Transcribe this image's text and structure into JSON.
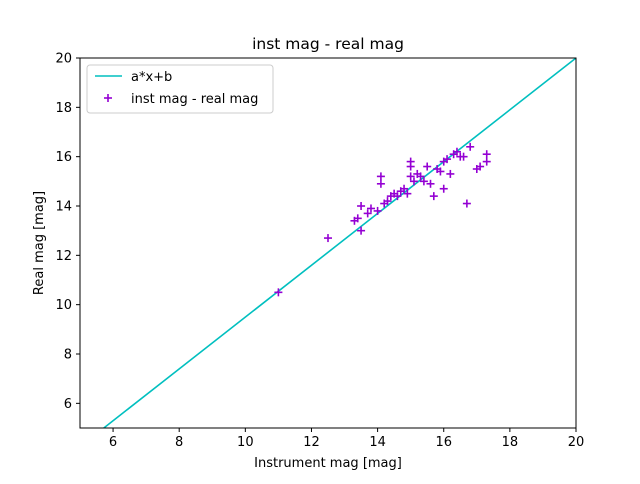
{
  "chart_data": {
    "type": "scatter",
    "title": "inst mag - real mag",
    "xlabel": "Instrument mag [mag]",
    "ylabel": "Real mag [mag]",
    "xlim": [
      5,
      20
    ],
    "ylim": [
      5,
      20
    ],
    "xticks": [
      6,
      8,
      10,
      12,
      14,
      16,
      18,
      20
    ],
    "yticks": [
      6,
      8,
      10,
      12,
      14,
      16,
      18,
      20
    ],
    "legend_placement": "upper-left",
    "grid": false,
    "series": [
      {
        "name": "a*x+b",
        "kind": "line",
        "color": "#00bfbf",
        "x": [
          5.72,
          20.0
        ],
        "y": [
          5.0,
          20.0
        ]
      },
      {
        "name": "inst mag - real mag",
        "kind": "scatter",
        "marker": "plus",
        "color": "#9400d3",
        "x": [
          11.0,
          12.5,
          13.3,
          13.4,
          13.5,
          13.5,
          13.7,
          13.8,
          14.0,
          14.1,
          14.1,
          14.2,
          14.3,
          14.4,
          14.5,
          14.6,
          14.7,
          14.8,
          14.9,
          15.0,
          15.0,
          15.0,
          15.1,
          15.2,
          15.3,
          15.4,
          15.5,
          15.6,
          15.7,
          15.8,
          15.9,
          16.0,
          16.0,
          16.1,
          16.2,
          16.3,
          16.4,
          16.5,
          16.6,
          16.7,
          16.8,
          17.0,
          17.1,
          17.3,
          17.3
        ],
        "y": [
          10.5,
          12.7,
          13.4,
          13.5,
          13.0,
          14.0,
          13.7,
          13.9,
          13.8,
          14.9,
          15.2,
          14.1,
          14.2,
          14.4,
          14.5,
          14.4,
          14.6,
          14.7,
          14.5,
          15.2,
          15.6,
          15.8,
          15.0,
          15.3,
          15.2,
          15.0,
          15.6,
          14.9,
          14.4,
          15.5,
          15.4,
          14.7,
          15.8,
          15.9,
          15.3,
          16.1,
          16.2,
          16.0,
          16.0,
          14.1,
          16.4,
          15.5,
          15.6,
          15.8,
          16.1
        ]
      }
    ]
  }
}
